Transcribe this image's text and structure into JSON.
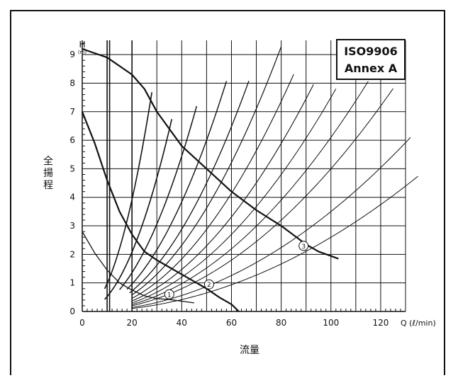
{
  "badge": {
    "line1": "ISO9906",
    "line2": "Annex A"
  },
  "chart_data": {
    "type": "line",
    "title": "",
    "xlabel": "流量",
    "ylabel": "全揚程",
    "x_unit": "Q (ℓ/min)",
    "y_unit_top": "H",
    "y_unit_sub": "(m)",
    "xlim": [
      0,
      130
    ],
    "ylim": [
      0,
      9.5
    ],
    "x_ticks": [
      0,
      20,
      40,
      60,
      80,
      100,
      120
    ],
    "x_tick_labels": [
      "0",
      "20",
      "40",
      "60",
      "80",
      "100",
      "120"
    ],
    "y_ticks": [
      0,
      1,
      2,
      3,
      4,
      5,
      6,
      7,
      8,
      9
    ],
    "y_tick_labels": [
      "0",
      "1",
      "2",
      "3",
      "4",
      "5",
      "6",
      "7",
      "8",
      "9"
    ],
    "grid": true,
    "pump_curves": [
      {
        "label": "①",
        "points": [
          [
            0,
            2.8
          ],
          [
            5,
            2.05
          ],
          [
            10,
            1.45
          ],
          [
            15,
            1.0
          ],
          [
            20,
            0.75
          ],
          [
            25,
            0.55
          ],
          [
            30,
            0.45
          ],
          [
            35,
            0.42
          ],
          [
            40,
            0.36
          ],
          [
            45,
            0.3
          ]
        ]
      },
      {
        "label": "②",
        "points": [
          [
            0,
            7.0
          ],
          [
            5,
            5.9
          ],
          [
            10,
            4.6
          ],
          [
            15,
            3.5
          ],
          [
            20,
            2.7
          ],
          [
            25,
            2.1
          ],
          [
            30,
            1.8
          ],
          [
            35,
            1.55
          ],
          [
            40,
            1.3
          ],
          [
            45,
            1.05
          ],
          [
            50,
            0.8
          ],
          [
            55,
            0.5
          ],
          [
            60,
            0.25
          ],
          [
            63,
            0.0
          ]
        ]
      },
      {
        "label": "③",
        "points": [
          [
            0,
            9.2
          ],
          [
            10,
            8.9
          ],
          [
            20,
            8.3
          ],
          [
            25,
            7.8
          ],
          [
            30,
            7.0
          ],
          [
            40,
            5.8
          ],
          [
            50,
            5.0
          ],
          [
            60,
            4.2
          ],
          [
            70,
            3.55
          ],
          [
            80,
            3.0
          ],
          [
            90,
            2.35
          ],
          [
            95,
            2.1
          ],
          [
            103,
            1.85
          ]
        ]
      }
    ],
    "label_positions": [
      {
        "label": "①",
        "x": 35,
        "y": 0.6
      },
      {
        "label": "②",
        "x": 51,
        "y": 0.95
      },
      {
        "label": "③",
        "x": 89,
        "y": 2.3
      }
    ],
    "system_curve_k": [
      0.0098,
      0.0052,
      0.0034,
      0.0024,
      0.0018,
      0.00145,
      0.00115,
      0.00092,
      0.00075,
      0.00061,
      0.0005,
      0.00035,
      0.00026
    ],
    "system_curve_range": [
      [
        9,
        28
      ],
      [
        9,
        36
      ],
      [
        15,
        46
      ],
      [
        18,
        58
      ],
      [
        19,
        67
      ],
      [
        20,
        80
      ],
      [
        20,
        85
      ],
      [
        20,
        93
      ],
      [
        20,
        102
      ],
      [
        20,
        115
      ],
      [
        20,
        125
      ],
      [
        20,
        132
      ],
      [
        20,
        135
      ]
    ],
    "system_curve_weights": [
      1.6,
      1.6,
      1.5,
      1.4,
      1.3,
      1.2,
      1.1,
      1.1,
      1.0,
      1.0,
      1.0,
      1.0,
      1.0
    ],
    "vertical_lines_x": [
      10,
      11,
      20
    ],
    "colors": {
      "line": "#111111",
      "grid": "#111111",
      "background": "#ffffff"
    }
  }
}
